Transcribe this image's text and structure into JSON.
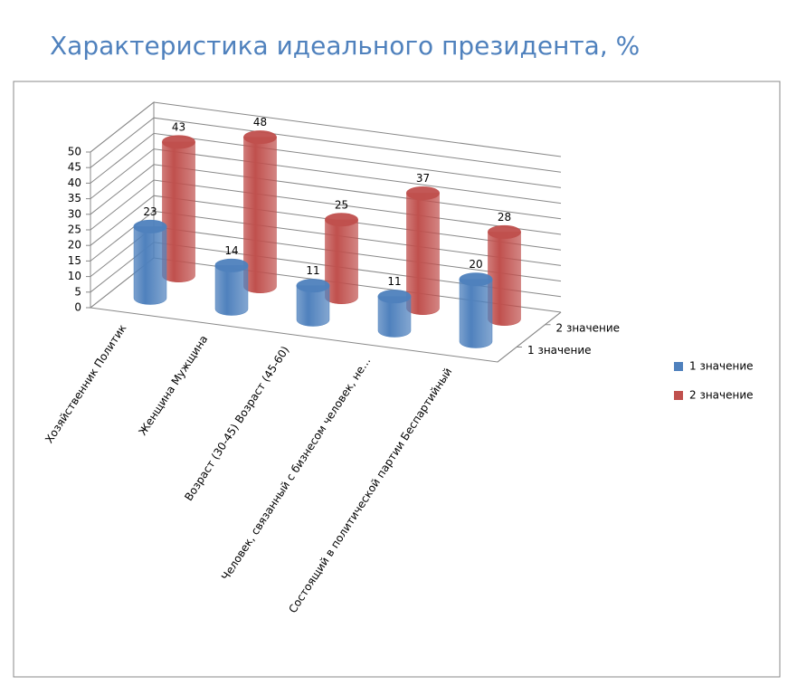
{
  "chart_data": {
    "type": "cylinder3d",
    "title": "Характеристика идеального президента, %",
    "categories": [
      "Хозяйственник Политик",
      "Женщина Мужщина",
      "Возраст (30-45) Возраст (45-60)",
      "Человек, связанный с бизнесом человек, не…",
      "Состоящий в политической партии Беспартийный"
    ],
    "series": [
      {
        "name": "1 значение",
        "color": "#4f81bd",
        "values": [
          23,
          14,
          11,
          11,
          20
        ]
      },
      {
        "name": "2 значение",
        "color": "#c0504d",
        "values": [
          43,
          48,
          25,
          37,
          28
        ]
      }
    ],
    "ylim": [
      0,
      50
    ],
    "yticks": [
      0,
      5,
      10,
      15,
      20,
      25,
      30,
      35,
      40,
      45,
      50
    ],
    "grid": true,
    "legend": "right"
  }
}
